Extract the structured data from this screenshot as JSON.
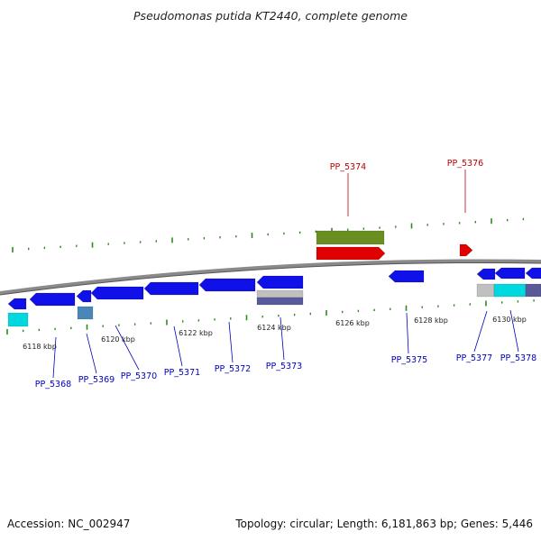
{
  "title": "Pseudomonas putida KT2440, complete genome",
  "footer": {
    "accession": "Accession: NC_002947",
    "summary": "Topology: circular; Length: 6,181,863 bp; Genes: 5,446"
  },
  "colors": {
    "background": "#ffffff",
    "backbone": "#8a8a8a",
    "tick": "#2e8b1e",
    "gene_forward": "#1010e8",
    "gene_reverse": "#1010e8",
    "rna": "#e00000",
    "olive": "#6b8e23",
    "cyan": "#00d8e0",
    "steelblue": "#4a86b8",
    "slate": "#5a5a9a",
    "gray_feature": "#c0c0c0",
    "label_blue": "#0000c0",
    "label_red": "#c00000"
  },
  "axis_labels": [
    "6118 kbp",
    "6120 kbp",
    "6122 kbp",
    "6124 kbp",
    "6126 kbp",
    "6128 kbp",
    "6130 kbp"
  ],
  "gene_labels": [
    "PP_5368",
    "PP_5369",
    "PP_5370",
    "PP_5371",
    "PP_5372",
    "PP_5373",
    "PP_5374",
    "PP_5375",
    "PP_5376",
    "PP_5377",
    "PP_5378"
  ]
}
